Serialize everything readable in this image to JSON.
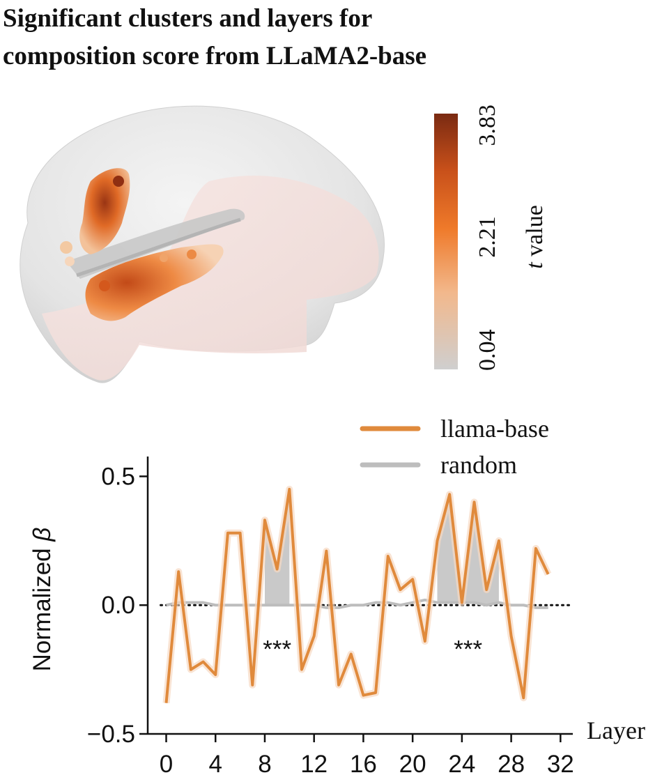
{
  "figure": {
    "title_line1": "Significant clusters and layers for",
    "title_line2": "composition score from LLaMA2-base"
  },
  "colorbar": {
    "label_italic": "t",
    "label_rest": " value",
    "ticks": [
      "0.04",
      "2.21",
      "3.83"
    ],
    "colors": [
      "#cfcfcf",
      "#f2b88c",
      "#ef7a2a",
      "#c8501a",
      "#7a2a12"
    ]
  },
  "chart_data": {
    "type": "line",
    "xlabel": "Layer",
    "ylabel": "Normalized β",
    "xlim": [
      -1.5,
      33
    ],
    "ylim": [
      -0.5,
      0.55
    ],
    "xticks": [
      0,
      4,
      8,
      12,
      16,
      20,
      24,
      28,
      32
    ],
    "yticks": [
      0.5,
      0.0,
      -0.5
    ],
    "ytick_labels": [
      "0.5",
      "0.0",
      "−0.5"
    ],
    "legend_position": "top-right",
    "series": [
      {
        "name": "llama-base",
        "color": "#e08a3c",
        "x": [
          0,
          1,
          2,
          3,
          4,
          5,
          6,
          7,
          8,
          9,
          10,
          11,
          12,
          13,
          14,
          15,
          16,
          17,
          18,
          19,
          20,
          21,
          22,
          23,
          24,
          25,
          26,
          27,
          28,
          29,
          30,
          31
        ],
        "values": [
          -0.38,
          0.13,
          -0.25,
          -0.22,
          -0.27,
          0.28,
          0.28,
          -0.31,
          0.33,
          0.14,
          0.45,
          -0.25,
          -0.12,
          0.21,
          -0.31,
          -0.19,
          -0.35,
          -0.34,
          0.19,
          0.06,
          0.1,
          -0.14,
          0.25,
          0.43,
          0.01,
          0.4,
          0.06,
          0.25,
          -0.12,
          -0.36,
          0.22,
          0.12
        ]
      },
      {
        "name": "random",
        "color": "#bdbdbd",
        "x": [
          0,
          1,
          2,
          3,
          4,
          5,
          6,
          7,
          8,
          9,
          10,
          11,
          12,
          13,
          14,
          15,
          16,
          17,
          18,
          19,
          20,
          21,
          22,
          23,
          24,
          25,
          26,
          27,
          28,
          29,
          30,
          31
        ],
        "values": [
          0,
          0.01,
          0.01,
          0.01,
          0,
          0,
          0,
          0,
          0,
          0,
          0,
          0,
          0,
          -0.01,
          -0.01,
          0,
          0,
          0.01,
          0.01,
          0,
          0.01,
          0.02,
          0.01,
          0.01,
          0.01,
          0.01,
          0,
          0.01,
          0,
          0,
          -0.01,
          -0.01
        ]
      }
    ],
    "significant_ranges": [
      {
        "x_start": 8,
        "x_end": 10,
        "label": "***"
      },
      {
        "x_start": 22,
        "x_end": 27,
        "label": "***"
      }
    ],
    "fill_color": "#c9c9c9",
    "zero_line": "dotted"
  }
}
